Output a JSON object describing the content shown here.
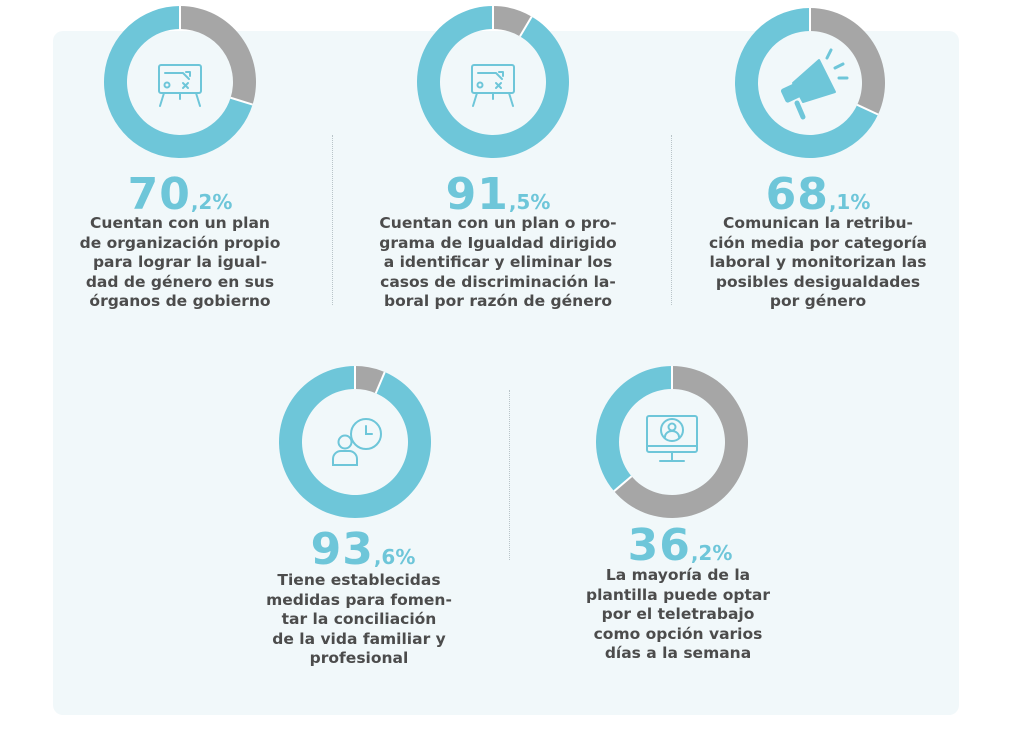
{
  "colors": {
    "accent": "#6ec6d9",
    "gray": "#a6a6a6",
    "text": "#4c4c4c",
    "panel": "#f1f8fa"
  },
  "chart_data": [
    {
      "type": "pie",
      "icon": "strategy-board-icon",
      "value": 70.2,
      "integer": "70",
      "decimal": ",2%",
      "description": "Cuentan con un plan\nde organización propio\npara lograr la igual-\ndad de género en sus\nórganos de gobierno"
    },
    {
      "type": "pie",
      "icon": "strategy-board-icon",
      "value": 91.5,
      "integer": "91",
      "decimal": ",5%",
      "description": "Cuentan con un plan o pro-\ngrama de Igualdad dirigido\na identificar y eliminar los\ncasos de discriminación la-\nboral por razón de género"
    },
    {
      "type": "pie",
      "icon": "megaphone-icon",
      "value": 68.1,
      "integer": "68",
      "decimal": ",1%",
      "description": "Comunican la retribu-\nción media por categoría\nlaboral y monitorizan las\nposibles desigualdades\npor género"
    },
    {
      "type": "pie",
      "icon": "person-clock-icon",
      "value": 93.6,
      "integer": "93",
      "decimal": ",6%",
      "description": "Tiene establecidas\nmedidas para fomen-\ntar la conciliación\nde la vida familiar y\nprofesional"
    },
    {
      "type": "pie",
      "icon": "remote-worker-monitor-icon",
      "value": 36.2,
      "integer": "36",
      "decimal": ",2%",
      "description": "La mayoría de la\nplantilla puede optar\npor el teletrabajo\ncomo opción varios\ndías a la semana"
    }
  ]
}
